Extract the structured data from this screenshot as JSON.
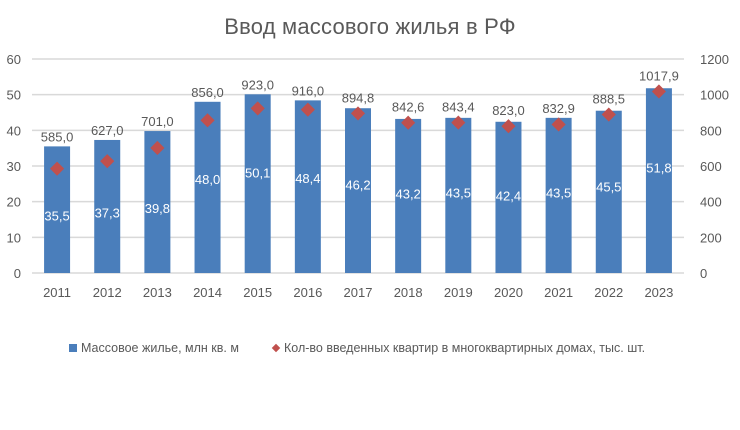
{
  "chart_data": {
    "type": "bar",
    "title": "Ввод массового жилья в РФ",
    "categories": [
      "2011",
      "2012",
      "2013",
      "2014",
      "2015",
      "2016",
      "2017",
      "2018",
      "2019",
      "2020",
      "2021",
      "2022",
      "2023"
    ],
    "series": [
      {
        "name": "Массовое жилье, млн кв. м",
        "type": "bar",
        "axis": "left",
        "color": "#4a7ebb",
        "values": [
          35.5,
          37.3,
          39.8,
          48.0,
          50.1,
          48.4,
          46.2,
          43.2,
          43.5,
          42.4,
          43.5,
          45.5,
          51.8
        ],
        "labels": [
          "35,5",
          "37,3",
          "39,8",
          "48,0",
          "50,1",
          "48,4",
          "46,2",
          "43,2",
          "43,5",
          "42,4",
          "43,5",
          "45,5",
          "51,8"
        ]
      },
      {
        "name": "Кол-во введенных квартир в многоквартирных домах,  тыс. шт.",
        "type": "scatter",
        "marker": "diamond",
        "axis": "right",
        "color": "#c0504d",
        "values": [
          585.0,
          627.0,
          701.0,
          856.0,
          923.0,
          916.0,
          894.8,
          842.6,
          843.4,
          823.0,
          832.9,
          888.5,
          1017.9
        ],
        "labels": [
          "585,0",
          "627,0",
          "701,0",
          "856,0",
          "923,0",
          "916,0",
          "894,8",
          "842,6",
          "843,4",
          "823,0",
          "832,9",
          "888,5",
          "1017,9"
        ]
      }
    ],
    "left_axis": {
      "ylim": [
        0,
        60
      ],
      "ticks": [
        "0",
        "10",
        "20",
        "30",
        "40",
        "50",
        "60"
      ]
    },
    "right_axis": {
      "ylim": [
        0,
        1200
      ],
      "ticks": [
        "0",
        "200",
        "400",
        "600",
        "800",
        "1000",
        "1200"
      ]
    },
    "xlabel": "",
    "ylabel": "",
    "grid": true,
    "legend_position": "bottom"
  },
  "legend": {
    "bar_label": "Массовое жилье, млн кв. м",
    "marker_label": "Кол-во введенных квартир в многоквартирных домах,  тыс. шт."
  }
}
